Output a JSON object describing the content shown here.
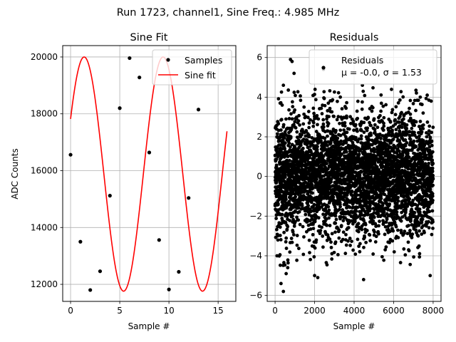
{
  "suptitle": "Run 1723, channel1, Sine Freq.: 4.985 MHz",
  "chart_data": [
    {
      "type": "line",
      "title": "Sine Fit",
      "xlabel": "Sample #",
      "ylabel": "ADC Counts",
      "xlim": [
        -0.8,
        16.8
      ],
      "ylim": [
        11400,
        20400
      ],
      "xticks": [
        0,
        5,
        10,
        15
      ],
      "yticks": [
        12000,
        14000,
        16000,
        18000,
        20000
      ],
      "grid": true,
      "legend_position": "top-right",
      "series": [
        {
          "name": "Samples",
          "style": "markers",
          "color": "#000000",
          "x": [
            0,
            1,
            2,
            3,
            4,
            5,
            6,
            7,
            8,
            9,
            10,
            11,
            12,
            13,
            14
          ],
          "y": [
            16560,
            13500,
            11800,
            12460,
            15120,
            18200,
            19960,
            19280,
            16640,
            13560,
            11820,
            12440,
            15040,
            18150,
            19900
          ]
        },
        {
          "name": "Sine fit",
          "style": "line",
          "color": "#ff0000",
          "model": {
            "offset": 15880,
            "amplitude": 4120,
            "period": 8.024,
            "phase": 0.172,
            "x_start": 0,
            "x_end": 15.9
          }
        }
      ]
    },
    {
      "type": "scatter",
      "title": "Residuals",
      "xlabel": "Sample #",
      "ylabel": "",
      "xlim": [
        -400,
        8400
      ],
      "ylim": [
        -6.3,
        6.6
      ],
      "xticks": [
        0,
        2000,
        4000,
        6000,
        8000
      ],
      "yticks": [
        -6,
        -4,
        -2,
        0,
        2,
        4,
        6
      ],
      "grid": true,
      "legend_position": "top-right",
      "legend_lines": [
        "Residuals",
        "μ = -0.0, σ = 1.53"
      ],
      "series": [
        {
          "name": "Residuals",
          "color": "#000000",
          "n_points": 8000,
          "mean": 0.0,
          "std": 1.53,
          "outliers": [
            [
              780,
              5.9
            ],
            [
              860,
              5.8
            ],
            [
              960,
              5.2
            ],
            [
              2450,
              5.4
            ],
            [
              4420,
              4.6
            ],
            [
              420,
              4.6
            ],
            [
              300,
              -5.4
            ],
            [
              420,
              -5.8
            ],
            [
              560,
              -4.9
            ],
            [
              640,
              -4.6
            ],
            [
              2000,
              -5.0
            ],
            [
              2160,
              -5.1
            ],
            [
              4480,
              -5.2
            ],
            [
              100,
              -4.0
            ],
            [
              7850,
              -5.0
            ],
            [
              7700,
              4.1
            ],
            [
              7900,
              3.8
            ]
          ]
        }
      ]
    }
  ]
}
